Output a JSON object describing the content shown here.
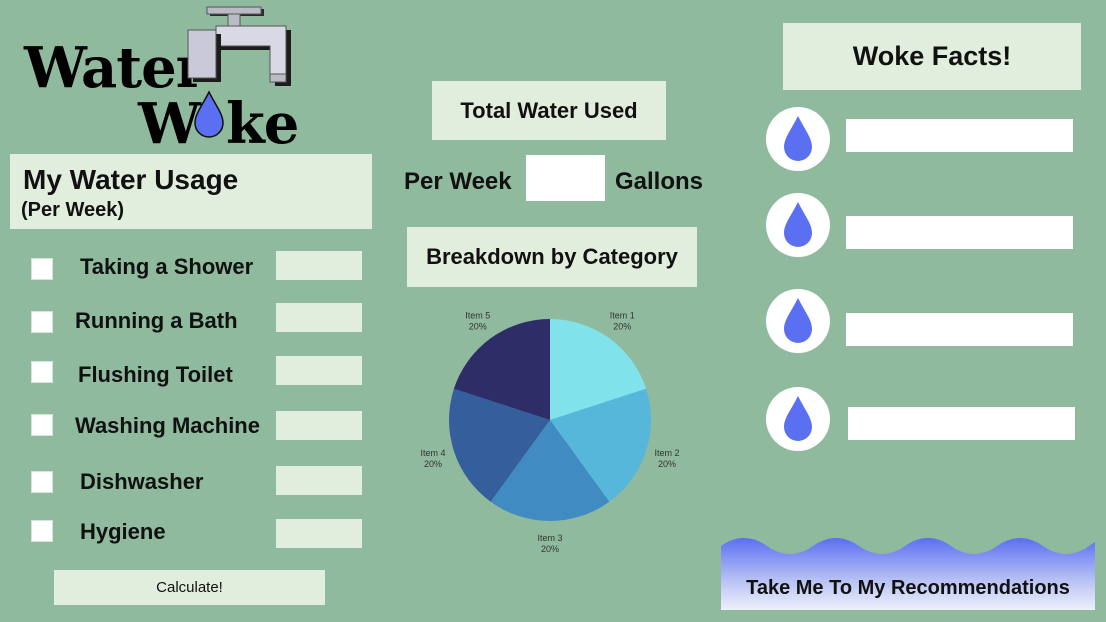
{
  "logo": {
    "word1": "Water",
    "word2_pre": "W",
    "word2_post": "ke"
  },
  "usage": {
    "title": "My Water Usage",
    "subtitle": "(Per Week)",
    "items": [
      {
        "label": "Taking a Shower",
        "value": ""
      },
      {
        "label": "Running a Bath",
        "value": ""
      },
      {
        "label": "Flushing Toilet",
        "value": ""
      },
      {
        "label": "Washing Machine",
        "value": ""
      },
      {
        "label": "Dishwasher",
        "value": ""
      },
      {
        "label": "Hygiene",
        "value": ""
      }
    ],
    "calculate_label": "Calculate!"
  },
  "total": {
    "title": "Total Water Used",
    "per_week": "Per Week",
    "value": "",
    "unit": "Gallons"
  },
  "breakdown": {
    "title": "Breakdown by Category"
  },
  "chart_data": {
    "type": "pie",
    "categories": [
      "Item 1",
      "Item 2",
      "Item 3",
      "Item 4",
      "Item 5"
    ],
    "values": [
      20,
      20,
      20,
      20,
      20
    ],
    "value_labels": [
      "20%",
      "20%",
      "20%",
      "20%",
      "20%"
    ],
    "colors": [
      "#80e2ea",
      "#56b7da",
      "#408bc1",
      "#355e9c",
      "#2e2d68"
    ],
    "legend": "none"
  },
  "facts": {
    "title": "Woke Facts!",
    "items": [
      "",
      "",
      "",
      ""
    ]
  },
  "recommendations_label": "Take Me To My Recommendations",
  "colors": {
    "background": "#8fba9e",
    "panel": "#e2eedd",
    "drop": "#5b6ff2",
    "wave_top": "#5b6ff2"
  }
}
